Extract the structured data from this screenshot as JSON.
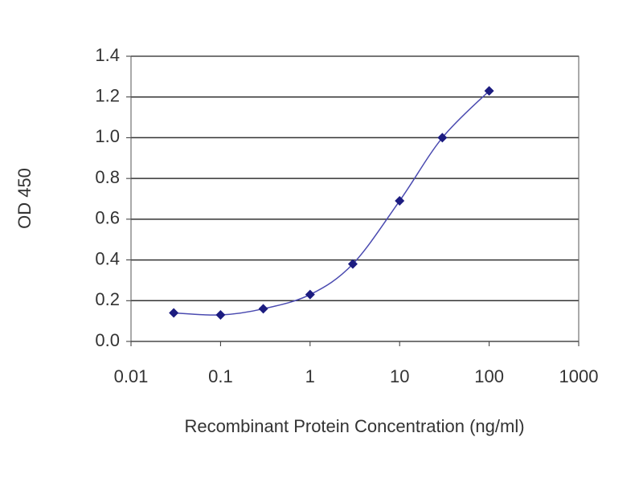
{
  "chart_data": {
    "type": "line",
    "xlabel": "Recombinant Protein Concentration (ng/ml)",
    "ylabel": "OD 450",
    "x": [
      0.03,
      0.1,
      0.3,
      1,
      3,
      10,
      30,
      100
    ],
    "series": [
      {
        "color": "#1c1c80",
        "values": [
          0.14,
          0.13,
          0.16,
          0.23,
          0.38,
          0.69,
          1.0,
          1.23
        ]
      }
    ],
    "xscale": "log",
    "xlim": [
      0.01,
      1000
    ],
    "xticks": [
      0.01,
      0.1,
      1,
      10,
      100,
      1000
    ],
    "ylim": [
      0,
      1.4
    ],
    "yticks": [
      {
        "value": 0,
        "label": "0.0"
      },
      0.2,
      0.4,
      0.6,
      0.8,
      {
        "value": 1,
        "label": "1.0"
      },
      1.2,
      1.4
    ],
    "grid": true
  }
}
